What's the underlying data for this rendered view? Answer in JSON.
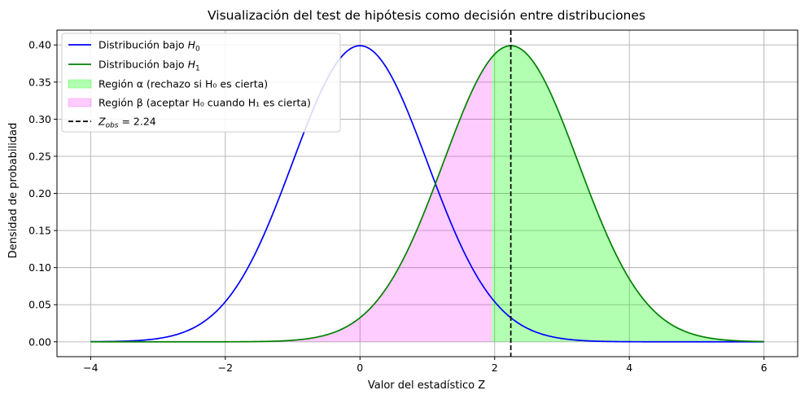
{
  "chart_data": {
    "type": "line",
    "title": "Visualización del test de hipótesis como decisión entre distribuciones",
    "xlabel": "Valor del estadístico Z",
    "ylabel": "Densidad de probabilidad",
    "xlim": [
      -4.5,
      6.5
    ],
    "ylim": [
      -0.02,
      0.42
    ],
    "xticks": [
      -4,
      -2,
      0,
      2,
      4,
      6
    ],
    "xtick_labels": [
      "−4",
      "−2",
      "0",
      "2",
      "4",
      "6"
    ],
    "yticks": [
      0.0,
      0.05,
      0.1,
      0.15,
      0.2,
      0.25,
      0.3,
      0.35,
      0.4
    ],
    "ytick_labels": [
      "0.00",
      "0.05",
      "0.10",
      "0.15",
      "0.20",
      "0.25",
      "0.30",
      "0.35",
      "0.40"
    ],
    "grid": true,
    "legend_position": "top-left",
    "x_range": [
      -4,
      6
    ],
    "critical_value": 1.96,
    "z_obs": 2.24,
    "series": [
      {
        "name": "Distribución bajo H0",
        "label_main": "Distribución bajo ",
        "label_sym": "H",
        "label_sub": "0",
        "kind": "normal_pdf",
        "mean": 0,
        "sd": 1,
        "color": "#0000ff"
      },
      {
        "name": "Distribución bajo H1",
        "label_main": "Distribución bajo ",
        "label_sym": "H",
        "label_sub": "1",
        "kind": "normal_pdf",
        "mean": 2.24,
        "sd": 1,
        "color": "#008000"
      }
    ],
    "regions": [
      {
        "name": "Región α (rechazo si H₀ es cierta)",
        "under": "H1",
        "x_from": 1.96,
        "x_to": 6,
        "color": "#00ff00",
        "alpha": 0.3
      },
      {
        "name": "Región β (aceptar H₀ cuando H₁ es cierta)",
        "under": "H1",
        "x_from": -4,
        "x_to": 1.96,
        "color": "#ff00ff",
        "alpha": 0.2
      }
    ],
    "vline": {
      "name": "Z_obs = 2.24",
      "label_sym": "Z",
      "label_sub": "obs",
      "label_rest": " = 2.24",
      "x": 2.24,
      "color": "#000000",
      "style": "dashed"
    }
  }
}
